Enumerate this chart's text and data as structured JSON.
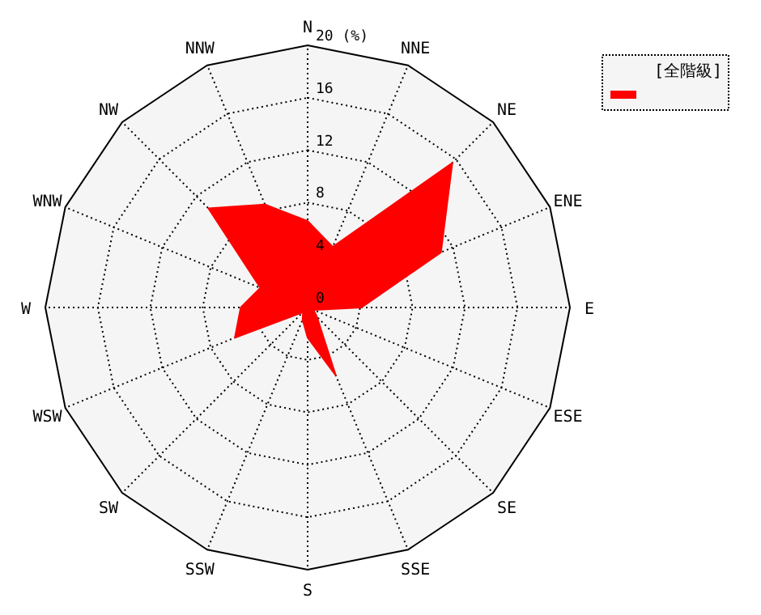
{
  "chart_data": {
    "type": "radar",
    "categories": [
      "N",
      "NNE",
      "NE",
      "ENE",
      "E",
      "ESE",
      "SE",
      "SSE",
      "S",
      "SSW",
      "SW",
      "WSW",
      "W",
      "WNW",
      "NW",
      "NNW"
    ],
    "series": [
      {
        "name": "[全階級]",
        "color": "#ff0000",
        "values": [
          6.6,
          5.0,
          15.6,
          11.0,
          4.1,
          0.5,
          1.0,
          5.6,
          2.3,
          1.0,
          0.5,
          6.0,
          5.1,
          3.9,
          10.7,
          8.5
        ]
      }
    ],
    "ylim": [
      0,
      20
    ],
    "yticks": [
      0,
      4,
      8,
      12,
      16,
      {
        "value": 20,
        "label": "20 (%)"
      }
    ],
    "grid": true,
    "legend": "top right"
  }
}
